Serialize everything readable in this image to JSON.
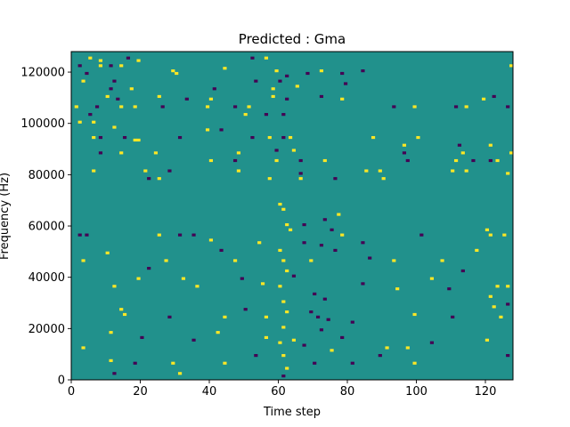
{
  "chart_data": {
    "type": "heatmap",
    "title": "Predicted : Gma",
    "xlabel": "Time step",
    "ylabel": "Frequency (Hz)",
    "xlim": [
      0,
      128
    ],
    "ylim": [
      0,
      128000
    ],
    "x_ticks": [
      0,
      20,
      40,
      60,
      80,
      100,
      120
    ],
    "y_ticks": [
      0,
      20000,
      40000,
      60000,
      80000,
      100000,
      120000
    ],
    "x_tick_labels": [
      "0",
      "20",
      "40",
      "60",
      "80",
      "100",
      "120"
    ],
    "y_tick_labels": [
      "0",
      "20000",
      "40000",
      "60000",
      "80000",
      "100000",
      "120000"
    ],
    "grid": false,
    "n_time_steps": 128,
    "n_frequency_bins": 128,
    "frequency_bin_width_hz": 1000,
    "background_value": 0,
    "colors": {
      "low": "#440154",
      "mid": "#21918c",
      "high": "#fde725"
    },
    "cells": [
      {
        "t": 5,
        "f": 125,
        "v": 1
      },
      {
        "t": 8,
        "f": 124,
        "v": 1
      },
      {
        "t": 16,
        "f": 125,
        "v": -1
      },
      {
        "t": 19,
        "f": 124,
        "v": 1
      },
      {
        "t": 52,
        "f": 125,
        "v": -1
      },
      {
        "t": 56,
        "f": 125,
        "v": 1
      },
      {
        "t": 127,
        "f": 122,
        "v": 1
      },
      {
        "t": 2,
        "f": 122,
        "v": -1
      },
      {
        "t": 8,
        "f": 122,
        "v": 1
      },
      {
        "t": 11,
        "f": 122,
        "v": -1
      },
      {
        "t": 14,
        "f": 122,
        "v": 1
      },
      {
        "t": 29,
        "f": 120,
        "v": 1
      },
      {
        "t": 44,
        "f": 121,
        "v": 1
      },
      {
        "t": 72,
        "f": 120,
        "v": 1
      },
      {
        "t": 84,
        "f": 120,
        "v": -1
      },
      {
        "t": 4,
        "f": 119,
        "v": -1
      },
      {
        "t": 30,
        "f": 119,
        "v": 1
      },
      {
        "t": 59,
        "f": 120,
        "v": 1
      },
      {
        "t": 68,
        "f": 119,
        "v": -1
      },
      {
        "t": 78,
        "f": 119,
        "v": -1
      },
      {
        "t": 62,
        "f": 118,
        "v": -1
      },
      {
        "t": 3,
        "f": 116,
        "v": 1
      },
      {
        "t": 12,
        "f": 116,
        "v": -1
      },
      {
        "t": 11,
        "f": 113,
        "v": -1
      },
      {
        "t": 17,
        "f": 113,
        "v": 1
      },
      {
        "t": 41,
        "f": 113,
        "v": -1
      },
      {
        "t": 53,
        "f": 116,
        "v": -1
      },
      {
        "t": 60,
        "f": 116,
        "v": -1
      },
      {
        "t": 58,
        "f": 113,
        "v": 1
      },
      {
        "t": 65,
        "f": 114,
        "v": 1
      },
      {
        "t": 79,
        "f": 115,
        "v": -1
      },
      {
        "t": 10,
        "f": 110,
        "v": 1
      },
      {
        "t": 13,
        "f": 109,
        "v": -1
      },
      {
        "t": 25,
        "f": 110,
        "v": 1
      },
      {
        "t": 33,
        "f": 109,
        "v": -1
      },
      {
        "t": 40,
        "f": 109,
        "v": 1
      },
      {
        "t": 58,
        "f": 110,
        "v": 1
      },
      {
        "t": 62,
        "f": 109,
        "v": -1
      },
      {
        "t": 72,
        "f": 110,
        "v": -1
      },
      {
        "t": 78,
        "f": 109,
        "v": 1
      },
      {
        "t": 119,
        "f": 109,
        "v": 1
      },
      {
        "t": 122,
        "f": 110,
        "v": -1
      },
      {
        "t": 1,
        "f": 106,
        "v": 1
      },
      {
        "t": 7,
        "f": 106,
        "v": -1
      },
      {
        "t": 14,
        "f": 106,
        "v": 1
      },
      {
        "t": 18,
        "f": 106,
        "v": 1
      },
      {
        "t": 26,
        "f": 106,
        "v": -1
      },
      {
        "t": 39,
        "f": 106,
        "v": 1
      },
      {
        "t": 47,
        "f": 106,
        "v": -1
      },
      {
        "t": 51,
        "f": 106,
        "v": 1
      },
      {
        "t": 93,
        "f": 106,
        "v": -1
      },
      {
        "t": 99,
        "f": 106,
        "v": 1
      },
      {
        "t": 111,
        "f": 106,
        "v": -1
      },
      {
        "t": 114,
        "f": 106,
        "v": 1
      },
      {
        "t": 126,
        "f": 106,
        "v": -1
      },
      {
        "t": 5,
        "f": 103,
        "v": -1
      },
      {
        "t": 50,
        "f": 103,
        "v": 1
      },
      {
        "t": 56,
        "f": 103,
        "v": -1
      },
      {
        "t": 61,
        "f": 103,
        "v": -1
      },
      {
        "t": 2,
        "f": 100,
        "v": 1
      },
      {
        "t": 6,
        "f": 100,
        "v": 1
      },
      {
        "t": 12,
        "f": 98,
        "v": 1
      },
      {
        "t": 39,
        "f": 97,
        "v": 1
      },
      {
        "t": 43,
        "f": 97,
        "v": -1
      },
      {
        "t": 6,
        "f": 94,
        "v": 1
      },
      {
        "t": 8,
        "f": 94,
        "v": -1
      },
      {
        "t": 15,
        "f": 94,
        "v": -1
      },
      {
        "t": 18,
        "f": 93,
        "v": 1
      },
      {
        "t": 19,
        "f": 93,
        "v": 1
      },
      {
        "t": 31,
        "f": 94,
        "v": -1
      },
      {
        "t": 52,
        "f": 94,
        "v": -1
      },
      {
        "t": 57,
        "f": 94,
        "v": 1
      },
      {
        "t": 61,
        "f": 94,
        "v": -1
      },
      {
        "t": 63,
        "f": 94,
        "v": 1
      },
      {
        "t": 87,
        "f": 94,
        "v": 1
      },
      {
        "t": 96,
        "f": 91,
        "v": 1
      },
      {
        "t": 100,
        "f": 94,
        "v": 1
      },
      {
        "t": 112,
        "f": 91,
        "v": -1
      },
      {
        "t": 121,
        "f": 91,
        "v": 1
      },
      {
        "t": 8,
        "f": 88,
        "v": -1
      },
      {
        "t": 14,
        "f": 88,
        "v": 1
      },
      {
        "t": 24,
        "f": 88,
        "v": 1
      },
      {
        "t": 48,
        "f": 88,
        "v": 1
      },
      {
        "t": 59,
        "f": 89,
        "v": -1
      },
      {
        "t": 64,
        "f": 89,
        "v": 1
      },
      {
        "t": 96,
        "f": 88,
        "v": -1
      },
      {
        "t": 113,
        "f": 88,
        "v": 1
      },
      {
        "t": 127,
        "f": 88,
        "v": 1
      },
      {
        "t": 40,
        "f": 85,
        "v": 1
      },
      {
        "t": 47,
        "f": 85,
        "v": -1
      },
      {
        "t": 59,
        "f": 85,
        "v": 1
      },
      {
        "t": 66,
        "f": 85,
        "v": -1
      },
      {
        "t": 73,
        "f": 85,
        "v": 1
      },
      {
        "t": 97,
        "f": 85,
        "v": -1
      },
      {
        "t": 111,
        "f": 85,
        "v": 1
      },
      {
        "t": 116,
        "f": 85,
        "v": -1
      },
      {
        "t": 121,
        "f": 85,
        "v": -1
      },
      {
        "t": 123,
        "f": 85,
        "v": 1
      },
      {
        "t": 6,
        "f": 81,
        "v": 1
      },
      {
        "t": 21,
        "f": 81,
        "v": 1
      },
      {
        "t": 28,
        "f": 81,
        "v": -1
      },
      {
        "t": 48,
        "f": 81,
        "v": 1
      },
      {
        "t": 66,
        "f": 80,
        "v": -1
      },
      {
        "t": 85,
        "f": 81,
        "v": 1
      },
      {
        "t": 89,
        "f": 81,
        "v": 1
      },
      {
        "t": 110,
        "f": 81,
        "v": 1
      },
      {
        "t": 114,
        "f": 81,
        "v": 1
      },
      {
        "t": 126,
        "f": 80,
        "v": 1
      },
      {
        "t": 22,
        "f": 78,
        "v": -1
      },
      {
        "t": 25,
        "f": 78,
        "v": 1
      },
      {
        "t": 57,
        "f": 78,
        "v": 1
      },
      {
        "t": 66,
        "f": 78,
        "v": 1
      },
      {
        "t": 76,
        "f": 78,
        "v": -1
      },
      {
        "t": 90,
        "f": 78,
        "v": 1
      },
      {
        "t": 2,
        "f": 56,
        "v": -1
      },
      {
        "t": 4,
        "f": 56,
        "v": -1
      },
      {
        "t": 25,
        "f": 56,
        "v": 1
      },
      {
        "t": 31,
        "f": 56,
        "v": -1
      },
      {
        "t": 35,
        "f": 56,
        "v": -1
      },
      {
        "t": 40,
        "f": 54,
        "v": 1
      },
      {
        "t": 54,
        "f": 53,
        "v": 1
      },
      {
        "t": 67,
        "f": 53,
        "v": -1
      },
      {
        "t": 72,
        "f": 52,
        "v": -1
      },
      {
        "t": 78,
        "f": 56,
        "v": 1
      },
      {
        "t": 84,
        "f": 53,
        "v": -1
      },
      {
        "t": 101,
        "f": 56,
        "v": -1
      },
      {
        "t": 121,
        "f": 56,
        "v": 1
      },
      {
        "t": 125,
        "f": 56,
        "v": 1
      },
      {
        "t": 3,
        "f": 46,
        "v": 1
      },
      {
        "t": 10,
        "f": 49,
        "v": 1
      },
      {
        "t": 27,
        "f": 46,
        "v": 1
      },
      {
        "t": 43,
        "f": 50,
        "v": -1
      },
      {
        "t": 47,
        "f": 46,
        "v": 1
      },
      {
        "t": 69,
        "f": 46,
        "v": 1
      },
      {
        "t": 76,
        "f": 50,
        "v": -1
      },
      {
        "t": 86,
        "f": 47,
        "v": -1
      },
      {
        "t": 93,
        "f": 46,
        "v": 1
      },
      {
        "t": 107,
        "f": 46,
        "v": 1
      },
      {
        "t": 117,
        "f": 50,
        "v": 1
      },
      {
        "t": 113,
        "f": 42,
        "v": -1
      },
      {
        "t": 12,
        "f": 36,
        "v": 1
      },
      {
        "t": 19,
        "f": 39,
        "v": 1
      },
      {
        "t": 22,
        "f": 43,
        "v": -1
      },
      {
        "t": 32,
        "f": 39,
        "v": 1
      },
      {
        "t": 36,
        "f": 36,
        "v": 1
      },
      {
        "t": 49,
        "f": 39,
        "v": -1
      },
      {
        "t": 55,
        "f": 37,
        "v": 1
      },
      {
        "t": 64,
        "f": 40,
        "v": -1
      },
      {
        "t": 84,
        "f": 37,
        "v": -1
      },
      {
        "t": 94,
        "f": 35,
        "v": 1
      },
      {
        "t": 104,
        "f": 39,
        "v": 1
      },
      {
        "t": 109,
        "f": 35,
        "v": -1
      },
      {
        "t": 126,
        "f": 36,
        "v": 1
      },
      {
        "t": 14,
        "f": 27,
        "v": 1
      },
      {
        "t": 15,
        "f": 25,
        "v": 1
      },
      {
        "t": 28,
        "f": 24,
        "v": -1
      },
      {
        "t": 44,
        "f": 24,
        "v": 1
      },
      {
        "t": 50,
        "f": 27,
        "v": -1
      },
      {
        "t": 56,
        "f": 24,
        "v": 1
      },
      {
        "t": 71,
        "f": 24,
        "v": -1
      },
      {
        "t": 81,
        "f": 22,
        "v": -1
      },
      {
        "t": 99,
        "f": 25,
        "v": 1
      },
      {
        "t": 110,
        "f": 24,
        "v": -1
      },
      {
        "t": 3,
        "f": 12,
        "v": 1
      },
      {
        "t": 11,
        "f": 18,
        "v": 1
      },
      {
        "t": 20,
        "f": 16,
        "v": -1
      },
      {
        "t": 35,
        "f": 15,
        "v": -1
      },
      {
        "t": 42,
        "f": 18,
        "v": 1
      },
      {
        "t": 56,
        "f": 16,
        "v": 1
      },
      {
        "t": 64,
        "f": 15,
        "v": 1
      },
      {
        "t": 78,
        "f": 16,
        "v": -1
      },
      {
        "t": 91,
        "f": 12,
        "v": 1
      },
      {
        "t": 97,
        "f": 12,
        "v": 1
      },
      {
        "t": 104,
        "f": 14,
        "v": -1
      },
      {
        "t": 120,
        "f": 15,
        "v": 1
      },
      {
        "t": 11,
        "f": 7,
        "v": 1
      },
      {
        "t": 18,
        "f": 6,
        "v": -1
      },
      {
        "t": 29,
        "f": 6,
        "v": 1
      },
      {
        "t": 44,
        "f": 6,
        "v": 1
      },
      {
        "t": 53,
        "f": 9,
        "v": -1
      },
      {
        "t": 70,
        "f": 6,
        "v": -1
      },
      {
        "t": 81,
        "f": 6,
        "v": -1
      },
      {
        "t": 89,
        "f": 9,
        "v": -1
      },
      {
        "t": 99,
        "f": 6,
        "v": 1
      },
      {
        "t": 126,
        "f": 9,
        "v": -1
      },
      {
        "t": 12,
        "f": 2,
        "v": -1
      },
      {
        "t": 31,
        "f": 2,
        "v": 1
      },
      {
        "t": 61,
        "f": 1,
        "v": -1
      },
      {
        "t": 60,
        "f": 68,
        "v": 1
      },
      {
        "t": 61,
        "f": 66,
        "v": 1
      },
      {
        "t": 62,
        "f": 60,
        "v": 1
      },
      {
        "t": 63,
        "f": 58,
        "v": 1
      },
      {
        "t": 60,
        "f": 50,
        "v": 1
      },
      {
        "t": 61,
        "f": 46,
        "v": 1
      },
      {
        "t": 62,
        "f": 42,
        "v": 1
      },
      {
        "t": 60,
        "f": 36,
        "v": 1
      },
      {
        "t": 61,
        "f": 30,
        "v": 1
      },
      {
        "t": 62,
        "f": 26,
        "v": 1
      },
      {
        "t": 61,
        "f": 20,
        "v": 1
      },
      {
        "t": 60,
        "f": 14,
        "v": 1
      },
      {
        "t": 61,
        "f": 9,
        "v": 1
      },
      {
        "t": 62,
        "f": 4,
        "v": 1
      },
      {
        "t": 70,
        "f": 33,
        "v": -1
      },
      {
        "t": 73,
        "f": 31,
        "v": -1
      },
      {
        "t": 69,
        "f": 26,
        "v": -1
      },
      {
        "t": 74,
        "f": 23,
        "v": -1
      },
      {
        "t": 72,
        "f": 19,
        "v": -1
      },
      {
        "t": 67,
        "f": 13,
        "v": -1
      },
      {
        "t": 75,
        "f": 11,
        "v": 1
      },
      {
        "t": 67,
        "f": 60,
        "v": -1
      },
      {
        "t": 73,
        "f": 62,
        "v": -1
      },
      {
        "t": 75,
        "f": 58,
        "v": -1
      },
      {
        "t": 77,
        "f": 64,
        "v": 1
      },
      {
        "t": 120,
        "f": 58,
        "v": 1
      },
      {
        "t": 121,
        "f": 32,
        "v": 1
      },
      {
        "t": 122,
        "f": 28,
        "v": 1
      },
      {
        "t": 123,
        "f": 36,
        "v": 1
      },
      {
        "t": 124,
        "f": 24,
        "v": 1
      },
      {
        "t": 126,
        "f": 29,
        "v": -1
      }
    ]
  }
}
